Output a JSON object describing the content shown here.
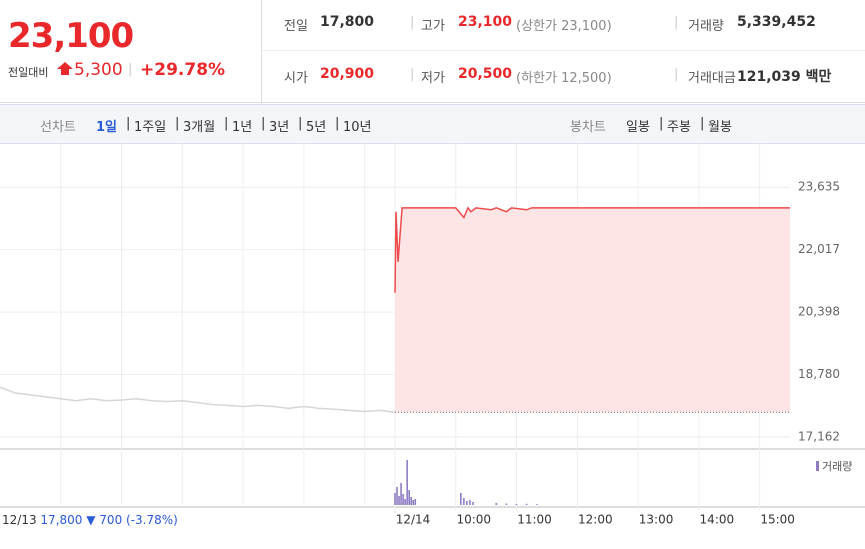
{
  "header": {
    "price": "23,100",
    "change_label": "전일대비",
    "change": "5,300",
    "rate": "+29.78%",
    "stats": [
      [
        {
          "label": "전일",
          "value": "17,800"
        },
        {
          "label": "고가",
          "value": "23,100",
          "note": "(상한가 23,100)"
        },
        {
          "label": "거래량",
          "value": "5,339,452"
        }
      ],
      [
        {
          "label": "시가",
          "value": "20,900"
        },
        {
          "label": "저가",
          "value": "20,500",
          "note": "(하한가 12,500)"
        },
        {
          "label": "거래대금",
          "value": "121,039 백만"
        }
      ]
    ]
  },
  "tabs": {
    "line_label": "선차트",
    "line_periods": [
      "1일",
      "1주일",
      "3개월",
      "1년",
      "3년",
      "5년",
      "10년"
    ],
    "candle_label": "봉차트",
    "candle_periods": [
      "일봉",
      "주봉",
      "월봉"
    ]
  },
  "footer": {
    "date": "12/13",
    "close": "17,800",
    "change": "▼ 700",
    "rate": "(-3.78%)"
  },
  "chart_data": {
    "type": "line",
    "x": [
      "12/13 09:00",
      "12/13 09:15",
      "12/13 09:30",
      "12/13 09:45",
      "12/13 10:00",
      "12/13 10:15",
      "12/13 10:30",
      "12/13 10:45",
      "12/13 11:00",
      "12/13 11:15",
      "12/13 11:30",
      "12/13 11:45",
      "12/13 12:00",
      "12/13 12:15",
      "12/13 12:30",
      "12/13 12:45",
      "12/13 13:00",
      "12/13 13:15",
      "12/13 13:30",
      "12/13 13:45",
      "12/13 14:00",
      "12/13 14:15",
      "12/13 14:30",
      "12/13 14:45",
      "12/13 15:00",
      "12/13 15:15",
      "12/13 15:30",
      "12/14 09:00",
      "12/14 09:01",
      "12/14 09:03",
      "12/14 09:05",
      "12/14 09:07",
      "12/14 10:00",
      "12/14 10:08",
      "12/14 10:12",
      "12/14 10:15",
      "12/14 10:20",
      "12/14 10:35",
      "12/14 10:40",
      "12/14 10:50",
      "12/14 10:55",
      "12/14 11:10",
      "12/14 11:15",
      "12/14 15:30"
    ],
    "series": [
      {
        "color": "#d6d6d6",
        "values": [
          18450,
          18300,
          18250,
          18200,
          18150,
          18100,
          18150,
          18100,
          18120,
          18150,
          18100,
          18080,
          18100,
          18050,
          18000,
          17980,
          17950,
          17980,
          17950,
          17900,
          17950,
          17900,
          17880,
          17850,
          17820,
          17850,
          17800,
          null,
          null,
          null,
          null,
          null,
          null,
          null,
          null,
          null,
          null,
          null,
          null,
          null,
          null,
          null,
          null,
          null
        ]
      },
      {
        "color": "#ee4b4d",
        "fill": "#fde4e5",
        "values": [
          null,
          null,
          null,
          null,
          null,
          null,
          null,
          null,
          null,
          null,
          null,
          null,
          null,
          null,
          null,
          null,
          null,
          null,
          null,
          null,
          null,
          null,
          null,
          null,
          null,
          null,
          null,
          20900,
          23000,
          21700,
          22400,
          23100,
          23100,
          22850,
          23100,
          23000,
          23100,
          23050,
          23100,
          23000,
          23100,
          23050,
          23100,
          23100
        ]
      }
    ],
    "reference_line": 17800,
    "ylim": [
      16900,
      24600
    ],
    "yticks": [
      {
        "value": 17162,
        "label": "17,162"
      },
      {
        "value": 18780,
        "label": "18,780"
      },
      {
        "value": 20398,
        "label": "20,398"
      },
      {
        "value": 22017,
        "label": "22,017"
      },
      {
        "value": 23635,
        "label": "23,635"
      }
    ],
    "xticks": [
      {
        "value": "12/14 09:00",
        "label": "12/14"
      },
      {
        "value": "12/14 10:00",
        "label": "10:00"
      },
      {
        "value": "12/14 11:00",
        "label": "11:00"
      },
      {
        "value": "12/14 12:00",
        "label": "12:00"
      },
      {
        "value": "12/14 13:00",
        "label": "13:00"
      },
      {
        "value": "12/14 14:00",
        "label": "14:00"
      },
      {
        "value": "12/14 15:00",
        "label": "15:00"
      }
    ],
    "volume": {
      "name": "거래량",
      "color": "#8e7cc3",
      "ylim": [
        0,
        500000
      ],
      "x": [
        "12/14 09:00",
        "12/14 09:02",
        "12/14 09:04",
        "12/14 09:06",
        "12/14 09:08",
        "12/14 09:10",
        "12/14 09:12",
        "12/14 09:14",
        "12/14 09:16",
        "12/14 09:18",
        "12/14 09:20",
        "12/14 10:05",
        "12/14 10:08",
        "12/14 10:11",
        "12/14 10:14",
        "12/14 10:17",
        "12/14 10:40",
        "12/14 10:50",
        "12/14 11:00",
        "12/14 11:10",
        "12/14 11:20"
      ],
      "values": [
        120000,
        180000,
        90000,
        220000,
        110000,
        60000,
        450000,
        150000,
        80000,
        50000,
        60000,
        120000,
        70000,
        40000,
        50000,
        30000,
        20000,
        15000,
        10000,
        12000,
        8000
      ]
    }
  }
}
